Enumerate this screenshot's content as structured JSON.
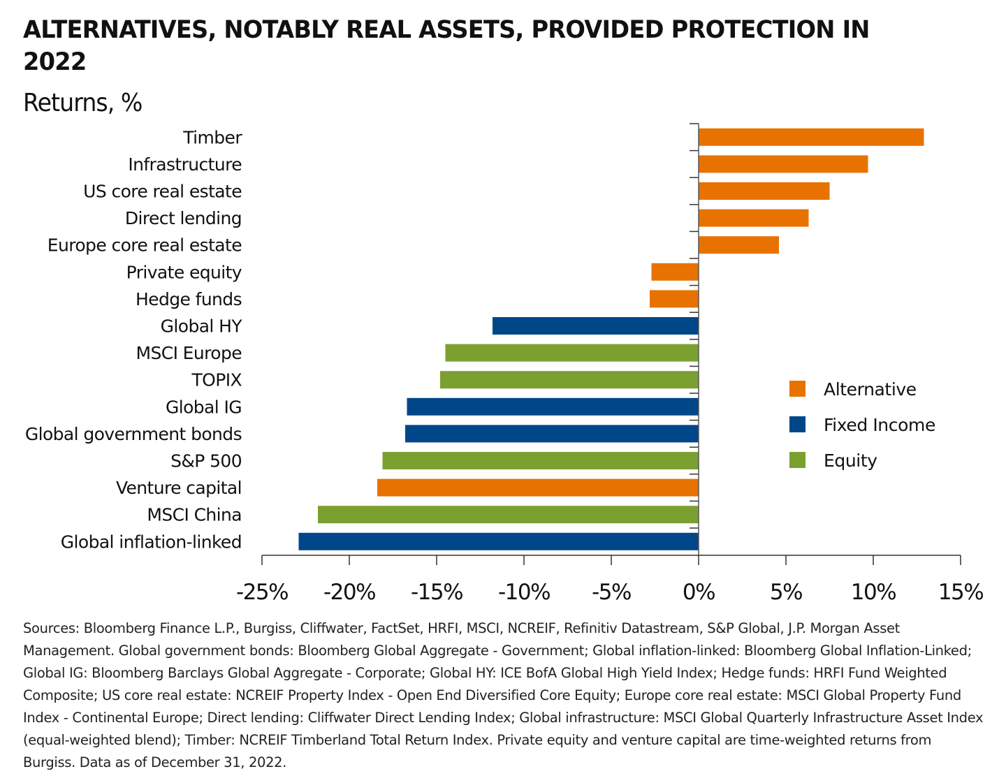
{
  "title": "ALTERNATIVES, NOTABLY REAL ASSETS, PROVIDED PROTECTION IN 2022",
  "subtitle": "Returns, %",
  "sources": "Sources: Bloomberg Finance L.P., Burgiss, Cliffwater, FactSet, HRFI, MSCI, NCREIF, Refinitiv Datastream, S&P Global, J.P. Morgan Asset Management. Global government bonds: Bloomberg Global Aggregate - Government; Global inflation-linked: Bloomberg Global Inflation-Linked; Global IG: Bloomberg Barclays Global Aggregate - Corporate; Global HY: ICE BofA Global High Yield Index; Hedge funds: HRFI Fund Weighted Composite; US core real estate: NCREIF Property Index - Open End Diversified Core Equity; Europe core real estate: MSCI Global Property Fund Index - Continental Europe; Direct lending: Cliffwater Direct Lending Index; Global infrastructure: MSCI Global Quarterly Infrastructure Asset Index (equal-weighted blend); Timber: NCREIF Timberland Total Return Index. Private equity and venture capital are time-weighted returns from Burgiss. Data as of December 31, 2022.",
  "chart_data": {
    "type": "bar",
    "orientation": "horizontal",
    "title": "ALTERNATIVES, NOTABLY REAL ASSETS, PROVIDED PROTECTION IN 2022",
    "subtitle": "Returns, %",
    "xlabel": "",
    "ylabel": "",
    "xlim": [
      -25,
      15
    ],
    "xticks": [
      -25,
      -20,
      -15,
      -10,
      -5,
      0,
      5,
      10,
      15
    ],
    "xtick_labels": [
      "-25%",
      "-20%",
      "-15%",
      "-10%",
      "-5%",
      "0%",
      "5%",
      "10%",
      "15%"
    ],
    "grid": false,
    "legend_position": "right",
    "legend": [
      {
        "name": "Alternative",
        "color": "#E87200"
      },
      {
        "name": "Fixed Income",
        "color": "#00478A"
      },
      {
        "name": "Equity",
        "color": "#7BA030"
      }
    ],
    "categories": [
      "Timber",
      "Infrastructure",
      "US core real estate",
      "Direct lending",
      "Europe core real estate",
      "Private equity",
      "Hedge funds",
      "Global HY",
      "MSCI Europe",
      "TOPIX",
      "Global IG",
      "Global government bonds",
      "S&P 500",
      "Venture capital",
      "MSCI China",
      "Global inflation-linked"
    ],
    "values": [
      12.9,
      9.7,
      7.5,
      6.3,
      4.6,
      -2.7,
      -2.8,
      -11.8,
      -14.5,
      -14.8,
      -16.7,
      -16.8,
      -18.1,
      -18.4,
      -21.8,
      -22.9
    ],
    "groups": [
      "Alternative",
      "Alternative",
      "Alternative",
      "Alternative",
      "Alternative",
      "Alternative",
      "Alternative",
      "Fixed Income",
      "Equity",
      "Equity",
      "Fixed Income",
      "Fixed Income",
      "Equity",
      "Alternative",
      "Equity",
      "Fixed Income"
    ]
  }
}
